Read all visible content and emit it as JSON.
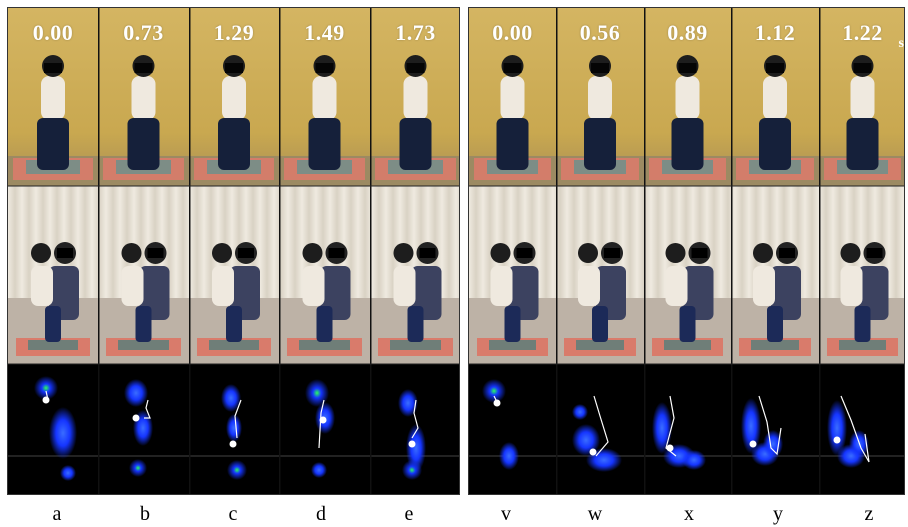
{
  "left_sequence": {
    "times": [
      "0.00",
      "0.73",
      "1.29",
      "1.49",
      "1.73"
    ],
    "captions": [
      "a",
      "b",
      "c",
      "d",
      "e"
    ]
  },
  "right_sequence": {
    "times": [
      "0.00",
      "0.56",
      "0.89",
      "1.12",
      "1.22"
    ],
    "unit": "s",
    "captions": [
      "v",
      "w",
      "x",
      "y",
      "z"
    ]
  },
  "colors": {
    "wall_top": "#d4b562",
    "wall_mid": "#e6dcc8",
    "curtain": "#e9e4da",
    "floor_mat": "#d97b6b",
    "pressure_bg": "#000000",
    "pressure_blue": "#1535ff",
    "pressure_green": "#27ff5a"
  }
}
